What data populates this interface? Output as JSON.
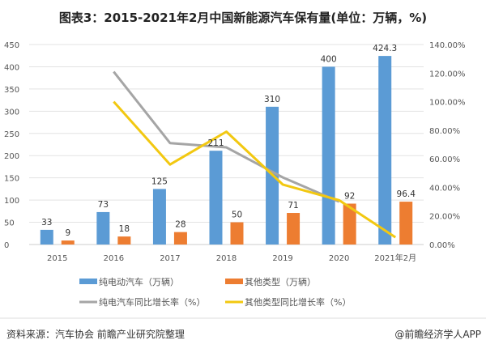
{
  "chart_data": {
    "type": "bar+line",
    "title": "图表3：2015-2021年2月中国新能源汽车保有量(单位：万辆，%)",
    "categories": [
      "2015",
      "2016",
      "2017",
      "2018",
      "2019",
      "2020",
      "2021年2月"
    ],
    "y_left": {
      "range": [
        0,
        450
      ],
      "ticks": [
        "0",
        "50",
        "100",
        "150",
        "200",
        "250",
        "300",
        "350",
        "400",
        "450"
      ]
    },
    "y_right": {
      "range": [
        0,
        140
      ],
      "ticks": [
        "0.00%",
        "20.00%",
        "40.00%",
        "60.00%",
        "80.00%",
        "100.00%",
        "120.00%",
        "140.00%"
      ]
    },
    "grid": true,
    "legend_position": "bottom",
    "series": [
      {
        "name": "纯电动汽车（万辆）",
        "type": "bar",
        "axis": "left",
        "color": "#5B9BD5",
        "values": [
          33,
          73,
          125,
          211,
          310,
          400,
          424.3
        ],
        "labels": [
          "33",
          "73",
          "125",
          "211",
          "310",
          "400",
          "424.3"
        ]
      },
      {
        "name": "其他类型（万辆）",
        "type": "bar",
        "axis": "left",
        "color": "#ED7D31",
        "values": [
          9,
          18,
          28,
          50,
          71,
          92,
          96.4
        ],
        "labels": [
          "9",
          "18",
          "28",
          "50",
          "71",
          "92",
          "96.4"
        ]
      },
      {
        "name": "纯电汽车同比增长率（%）",
        "type": "line",
        "axis": "right",
        "color": "#A5A5A5",
        "values": [
          null,
          121,
          71,
          68,
          47,
          30,
          null
        ]
      },
      {
        "name": "其他类型同比增长率（%）",
        "type": "line",
        "axis": "right",
        "color": "#F2C811",
        "values": [
          null,
          100,
          56,
          79,
          42,
          31,
          5
        ]
      }
    ]
  },
  "footer": {
    "source": "资料来源：汽车协会 前瞻产业研究院整理",
    "credit": "@前瞻经济学人APP"
  }
}
